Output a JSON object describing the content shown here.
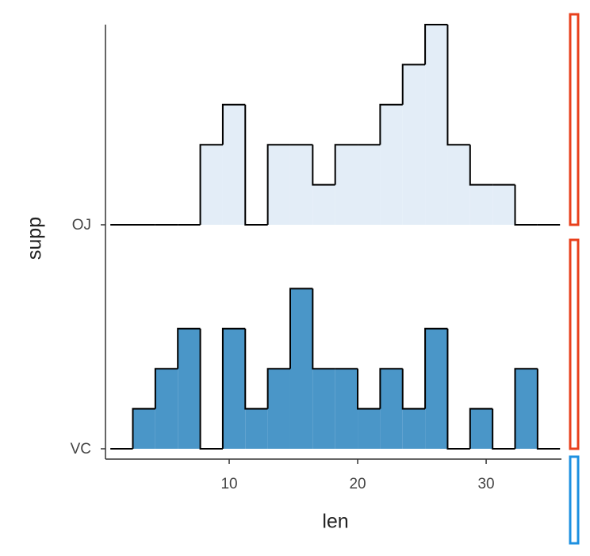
{
  "chart_data": {
    "type": "ridgeline_histogram",
    "x_label": "len",
    "y_label": "supp",
    "xlim": [
      0.37,
      35.86
    ],
    "xticks": [
      10,
      20,
      30
    ],
    "bins": [
      0.75,
      2.5,
      4.25,
      6,
      7.75,
      9.5,
      11.25,
      13,
      14.75,
      16.5,
      18.25,
      20,
      21.75,
      23.5,
      25.25,
      27,
      28.75,
      30.5,
      32.25,
      34,
      35.75
    ],
    "series": [
      {
        "name": "OJ",
        "color": "#e3edf7",
        "values": [
          0,
          0,
          0,
          0,
          2,
          3,
          0,
          2,
          2,
          1,
          2,
          2,
          3,
          4,
          5,
          2,
          1,
          1,
          0,
          0
        ]
      },
      {
        "name": "VC",
        "color": "#4a96c8",
        "values": [
          0,
          1,
          2,
          3,
          0,
          3,
          1,
          2,
          4,
          2,
          2,
          1,
          2,
          1,
          3,
          0,
          1,
          0,
          2,
          0
        ]
      }
    ]
  }
}
